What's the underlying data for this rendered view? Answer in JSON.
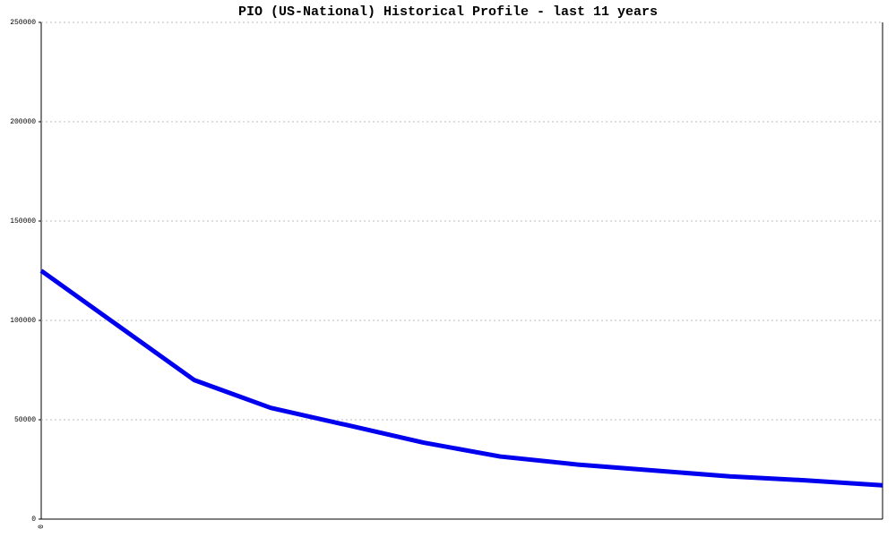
{
  "chart_data": {
    "type": "line",
    "title": "PIO (US-National) Historical Profile - last 11 years",
    "categories": [
      "0",
      null,
      null,
      null,
      null,
      null,
      null,
      null,
      null,
      null,
      null,
      null
    ],
    "series": [
      {
        "color": "#0000ee",
        "values": [
          125000,
          97500,
          70000,
          56000,
          47300,
          38500,
          31500,
          27500,
          24500,
          21500,
          19500,
          17000
        ]
      }
    ],
    "ylim": [
      0,
      250000
    ],
    "yticks": [
      0,
      50000,
      100000,
      150000,
      200000,
      250000
    ],
    "grid": true
  }
}
